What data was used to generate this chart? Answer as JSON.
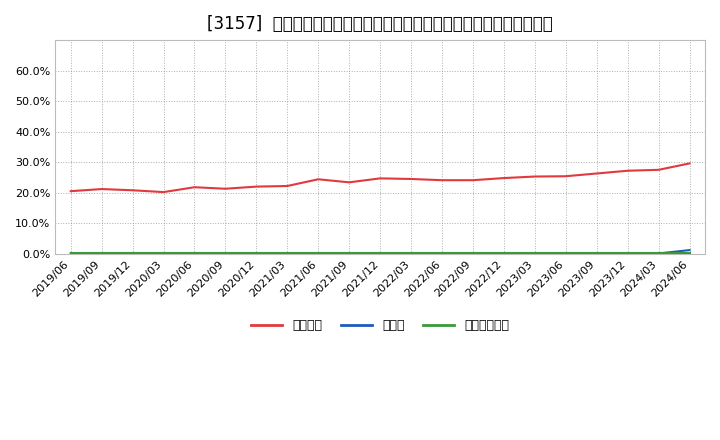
{
  "title": "[3157]  自己資本、のれん、繰延税金資産の総資産に対する比率の推移",
  "x_labels": [
    "2019/06",
    "2019/09",
    "2019/12",
    "2020/03",
    "2020/06",
    "2020/09",
    "2020/12",
    "2021/03",
    "2021/06",
    "2021/09",
    "2021/12",
    "2022/03",
    "2022/06",
    "2022/09",
    "2022/12",
    "2023/03",
    "2023/06",
    "2023/09",
    "2023/12",
    "2024/03",
    "2024/06"
  ],
  "equity_ratio": [
    0.205,
    0.212,
    0.208,
    0.202,
    0.218,
    0.213,
    0.22,
    0.222,
    0.244,
    0.234,
    0.247,
    0.245,
    0.241,
    0.241,
    0.248,
    0.253,
    0.254,
    0.263,
    0.272,
    0.275,
    0.296
  ],
  "goodwill_ratio": [
    0.001,
    0.001,
    0.001,
    0.001,
    0.001,
    0.001,
    0.001,
    0.001,
    0.001,
    0.001,
    0.001,
    0.001,
    0.001,
    0.001,
    0.001,
    0.001,
    0.001,
    0.001,
    0.001,
    0.001,
    0.012
  ],
  "deferred_tax_ratio": [
    0.001,
    0.001,
    0.001,
    0.001,
    0.001,
    0.001,
    0.001,
    0.001,
    0.001,
    0.001,
    0.001,
    0.001,
    0.001,
    0.001,
    0.001,
    0.001,
    0.001,
    0.001,
    0.001,
    0.001,
    0.001
  ],
  "equity_color": "#e0393e",
  "goodwill_color": "#1e5bbd",
  "deferred_tax_color": "#3a9a3a",
  "background_color": "#ffffff",
  "plot_bg_color": "#ffffff",
  "grid_color": "#999999",
  "ylim": [
    0.0,
    0.7
  ],
  "yticks": [
    0.0,
    0.1,
    0.2,
    0.3,
    0.4,
    0.5,
    0.6
  ],
  "legend_labels": [
    "自己資本",
    "のれん",
    "繰延税金資産"
  ],
  "title_fontsize": 12,
  "label_fontsize": 9,
  "tick_fontsize": 8
}
